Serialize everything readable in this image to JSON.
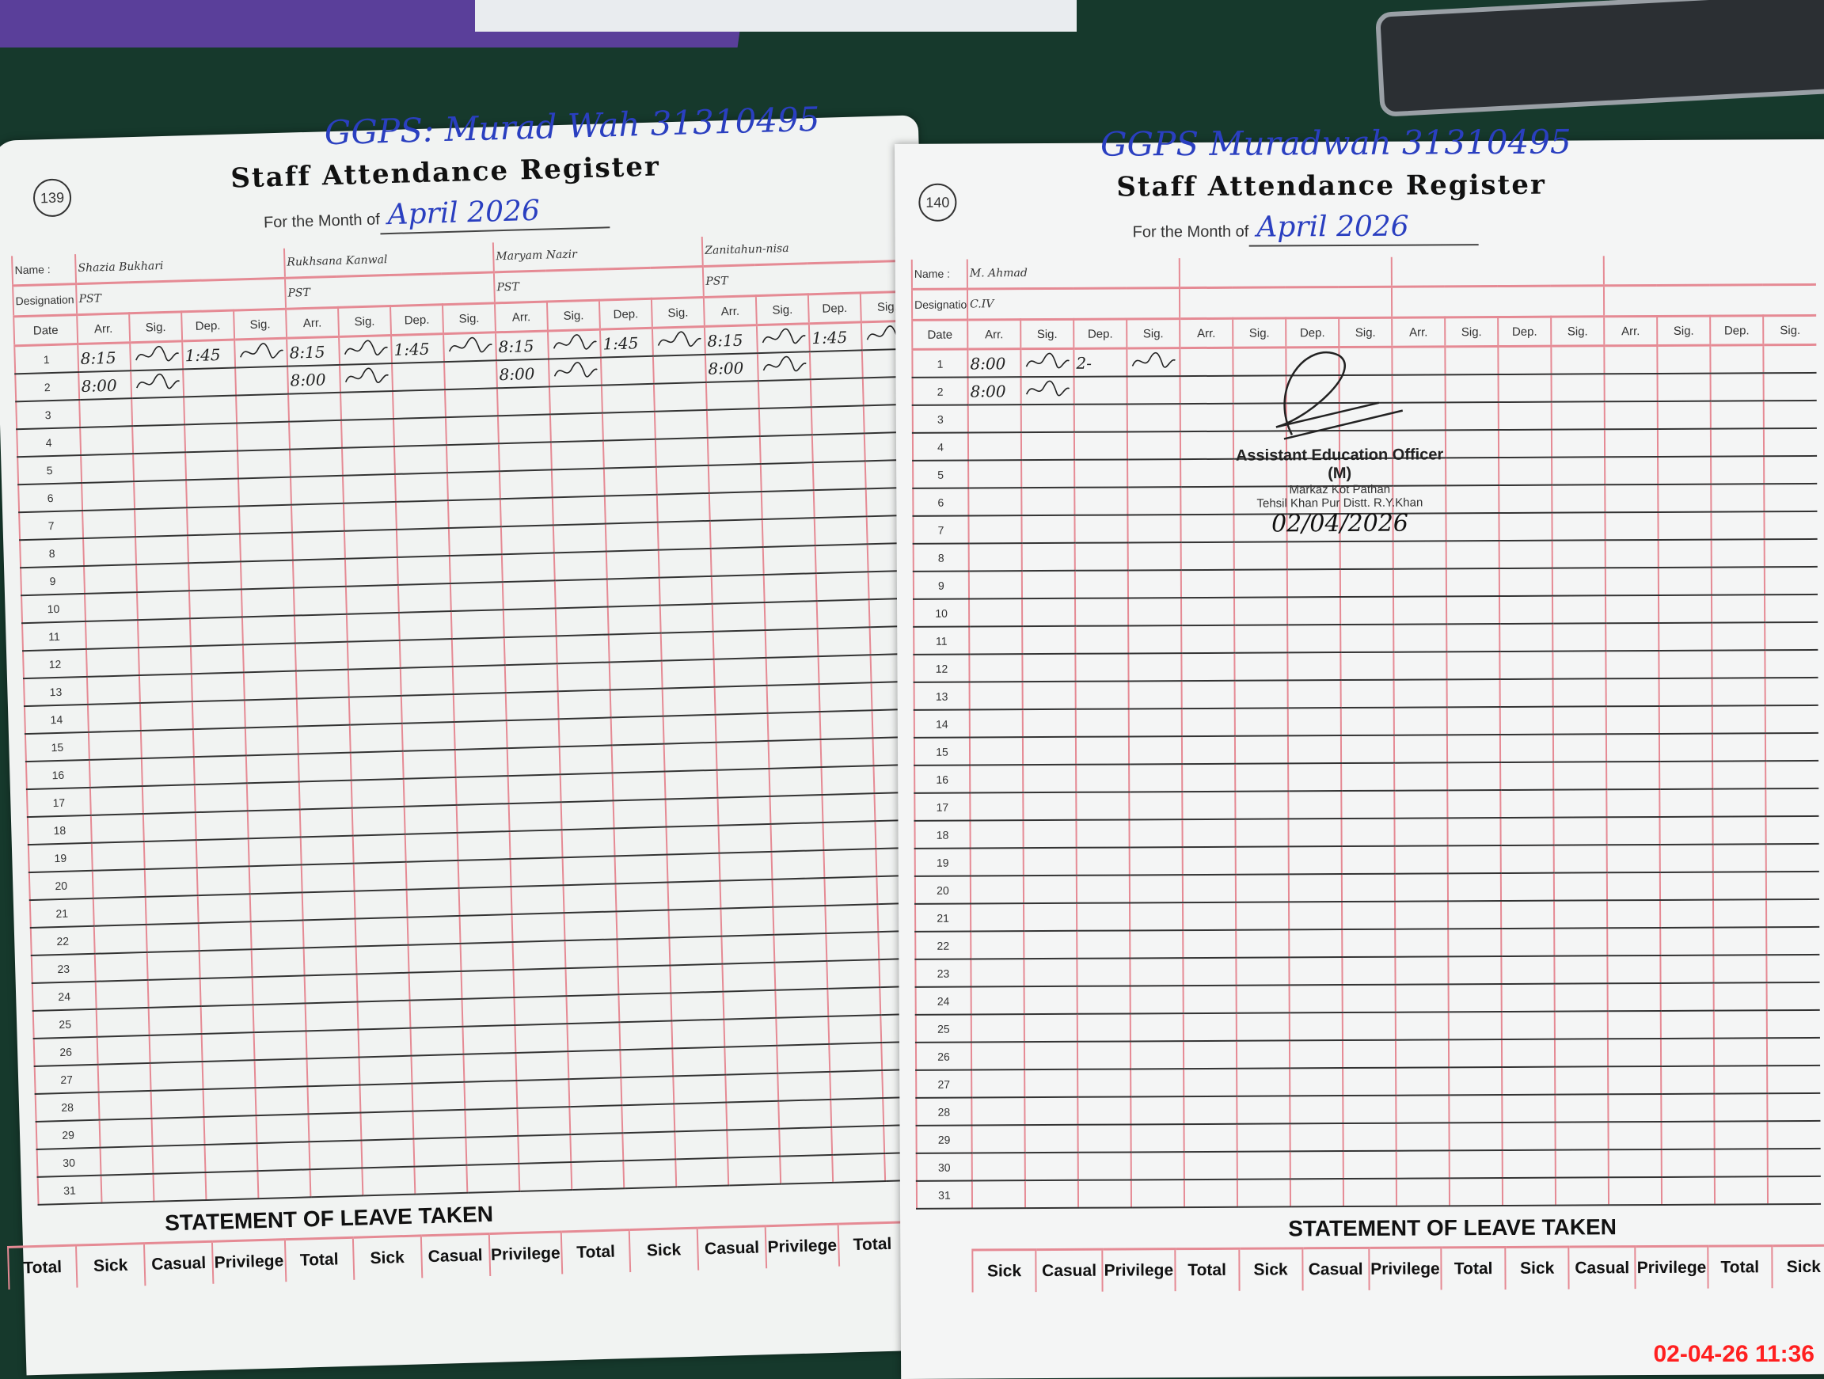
{
  "left_page": {
    "page_number": "139",
    "school": "GGPS: Murad Wah 31310495",
    "title": "Staff Attendance Register",
    "month_label": "For the Month of",
    "month_value": "April 2026",
    "name_label": "Name :",
    "designation_label": "Designation :",
    "date_label": "Date",
    "column_labels": [
      "Arr.",
      "Sig.",
      "Dep.",
      "Sig."
    ],
    "staff": [
      {
        "name": "Shazia Bukhari",
        "designation": "PST",
        "entries": [
          {
            "arr": "8:15",
            "dep": "1:45"
          },
          {
            "arr": "8:00",
            "dep": ""
          }
        ]
      },
      {
        "name": "Rukhsana Kanwal",
        "designation": "PST",
        "entries": [
          {
            "arr": "8:15",
            "dep": "1:45"
          },
          {
            "arr": "8:00",
            "dep": ""
          }
        ]
      },
      {
        "name": "Maryam Nazir",
        "designation": "PST",
        "entries": [
          {
            "arr": "8:15",
            "dep": "1:45"
          },
          {
            "arr": "8:00",
            "dep": ""
          }
        ]
      },
      {
        "name": "Zanitahun-nisa",
        "designation": "PST",
        "entries": [
          {
            "arr": "8:15",
            "dep": "1:45"
          },
          {
            "arr": "8:00",
            "dep": ""
          }
        ]
      }
    ],
    "statement_title": "STATEMENT OF LEAVE TAKEN",
    "leave_headers": [
      "Total",
      "Sick",
      "Casual",
      "Privilege",
      "Total",
      "Sick",
      "Casual",
      "Privilege",
      "Total",
      "Sick",
      "Casual",
      "Privilege",
      "Total"
    ]
  },
  "right_page": {
    "page_number": "140",
    "school": "GGPS Muradwah 31310495",
    "title": "Staff Attendance Register",
    "month_label": "For the Month of",
    "month_value": "April 2026",
    "name_label": "Name :",
    "designation_label": "Designation :",
    "date_label": "Date",
    "column_labels": [
      "Arr.",
      "Sig.",
      "Dep.",
      "Sig."
    ],
    "staff": [
      {
        "name": "M. Ahmad",
        "designation": "C.IV",
        "entries": [
          {
            "arr": "8:00",
            "dep": "2-"
          },
          {
            "arr": "8:00",
            "dep": ""
          }
        ]
      },
      {
        "name": "",
        "designation": "",
        "entries": []
      },
      {
        "name": "",
        "designation": "",
        "entries": []
      },
      {
        "name": "",
        "designation": "",
        "entries": []
      }
    ],
    "stamp": {
      "title": "Assistant Education Officer (M)",
      "line2": "Markaz Kot Pathan",
      "line3": "Tehsil Khan Pur Distt. R.Y.Khan",
      "date": "02/04/2026"
    },
    "statement_title": "STATEMENT OF LEAVE TAKEN",
    "leave_headers": [
      "Sick",
      "Casual",
      "Privilege",
      "Total",
      "Sick",
      "Casual",
      "Privilege",
      "Total",
      "Sick",
      "Casual",
      "Privilege",
      "Total",
      "Sick"
    ]
  },
  "camera_timestamp": "02-04-26 11:36",
  "colors": {
    "ink_blue": "#2a3fc0",
    "rule_red": "#e58a94",
    "timestamp_red": "#ff2020",
    "table_green": "#16392c"
  }
}
